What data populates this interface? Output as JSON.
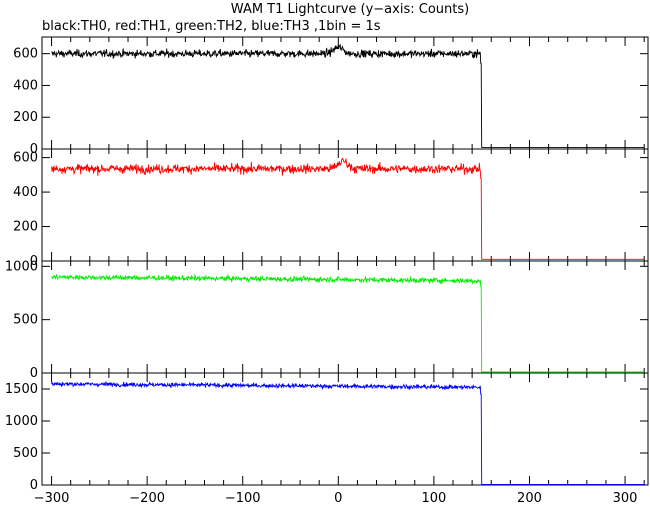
{
  "chart_data": {
    "type": "line",
    "title": "WAM T1 Lightcurve (y−axis: Counts)",
    "subtitle": "black:TH0, red:TH1, green:TH2, blue:TH3 ,1bin = 1s",
    "xlim": [
      -310,
      324
    ],
    "x_ticks": [
      -300,
      -200,
      -100,
      0,
      100,
      200,
      300
    ],
    "grid": false,
    "panels": [
      {
        "name": "TH0",
        "color": "#000000",
        "ylim": [
          0,
          705
        ],
        "y_ticks": [
          0,
          200,
          400,
          600
        ],
        "series": [
          {
            "x": -300,
            "y": 600
          },
          {
            "x": -100,
            "y": 600
          },
          {
            "x": 0,
            "y": 640
          },
          {
            "x": 148,
            "y": 600
          },
          {
            "x": 150,
            "y": 10
          },
          {
            "x": 320,
            "y": 10
          }
        ],
        "level_before": 600,
        "noise": 20,
        "bump_x": 0,
        "bump_amp": 40,
        "drop_x": 150,
        "level_after": 10
      },
      {
        "name": "TH1",
        "color": "#ff0000",
        "ylim": [
          0,
          650
        ],
        "y_ticks": [
          0,
          200,
          400,
          600
        ],
        "series": [
          {
            "x": -300,
            "y": 535
          },
          {
            "x": -100,
            "y": 535
          },
          {
            "x": 0,
            "y": 580
          },
          {
            "x": 148,
            "y": 535
          },
          {
            "x": 150,
            "y": 10
          },
          {
            "x": 320,
            "y": 10
          }
        ],
        "level_before": 535,
        "noise": 22,
        "bump_x": 5,
        "bump_amp": 45,
        "drop_x": 150,
        "level_after": 10
      },
      {
        "name": "TH2",
        "color": "#00ee00",
        "ylim": [
          0,
          1050
        ],
        "y_ticks": [
          0,
          500,
          1000
        ],
        "series": [
          {
            "x": -300,
            "y": 910
          },
          {
            "x": -100,
            "y": 890
          },
          {
            "x": 148,
            "y": 870
          },
          {
            "x": 150,
            "y": 10
          },
          {
            "x": 320,
            "y": 10
          }
        ],
        "level_before": 900,
        "noise": 20,
        "bump_x": 0,
        "bump_amp": 0,
        "drop_x": 150,
        "level_after": 10
      },
      {
        "name": "TH3",
        "color": "#0000ff",
        "ylim": [
          0,
          1750
        ],
        "y_ticks": [
          0,
          500,
          1000,
          1500
        ],
        "series": [
          {
            "x": -300,
            "y": 1600
          },
          {
            "x": -100,
            "y": 1570
          },
          {
            "x": 148,
            "y": 1520
          },
          {
            "x": 150,
            "y": 10
          },
          {
            "x": 320,
            "y": 10
          }
        ],
        "level_before": 1580,
        "noise": 28,
        "bump_x": 0,
        "bump_amp": 0,
        "drop_x": 150,
        "level_after": 10
      }
    ]
  }
}
